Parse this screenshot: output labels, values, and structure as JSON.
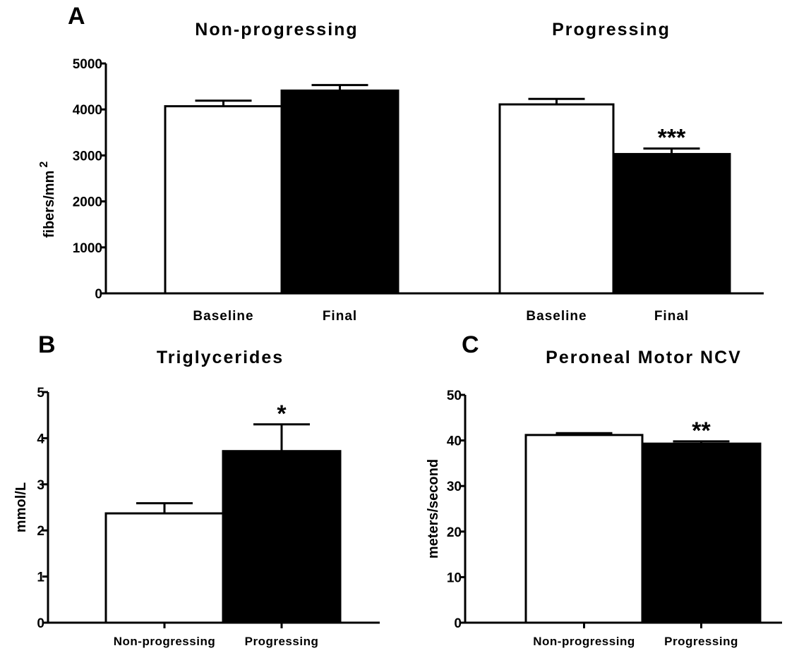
{
  "chart_data": [
    {
      "panel": "A",
      "type": "bar",
      "ylabel": "fibers/mm",
      "ylabel_superscript": "2",
      "ylim": [
        0,
        5000
      ],
      "yticks": [
        "0",
        "1000",
        "2000",
        "3000",
        "4000",
        "5000"
      ],
      "groups": [
        {
          "title": "Non-progressing",
          "categories": [
            "Baseline",
            "Final"
          ],
          "values": [
            4070,
            4410
          ],
          "errors": [
            120,
            120
          ],
          "fills": [
            "#ffffff",
            "#000000"
          ],
          "significance": [
            "",
            ""
          ]
        },
        {
          "title": "Progressing",
          "categories": [
            "Baseline",
            "Final"
          ],
          "values": [
            4110,
            3030
          ],
          "errors": [
            120,
            120
          ],
          "fills": [
            "#ffffff",
            "#000000"
          ],
          "significance": [
            "",
            "***"
          ]
        }
      ]
    },
    {
      "panel": "B",
      "type": "bar",
      "title": "Triglycerides",
      "ylabel": "mmol/L",
      "ylim": [
        0,
        5
      ],
      "yticks": [
        "0",
        "1",
        "2",
        "3",
        "4",
        "5"
      ],
      "categories": [
        "Non-progressing",
        "Progressing"
      ],
      "values": [
        2.37,
        3.72
      ],
      "errors": [
        0.22,
        0.58
      ],
      "fills": [
        "#ffffff",
        "#000000"
      ],
      "significance": [
        "",
        "*"
      ]
    },
    {
      "panel": "C",
      "type": "bar",
      "title": "Peroneal Motor NCV",
      "ylabel": "meters/second",
      "ylim": [
        0,
        50
      ],
      "yticks": [
        "0",
        "10",
        "20",
        "30",
        "40",
        "50"
      ],
      "categories": [
        "Non-progressing",
        "Progressing"
      ],
      "values": [
        41.2,
        39.3
      ],
      "errors": [
        0.4,
        0.5
      ],
      "fills": [
        "#ffffff",
        "#000000"
      ],
      "significance": [
        "",
        "**"
      ]
    }
  ]
}
